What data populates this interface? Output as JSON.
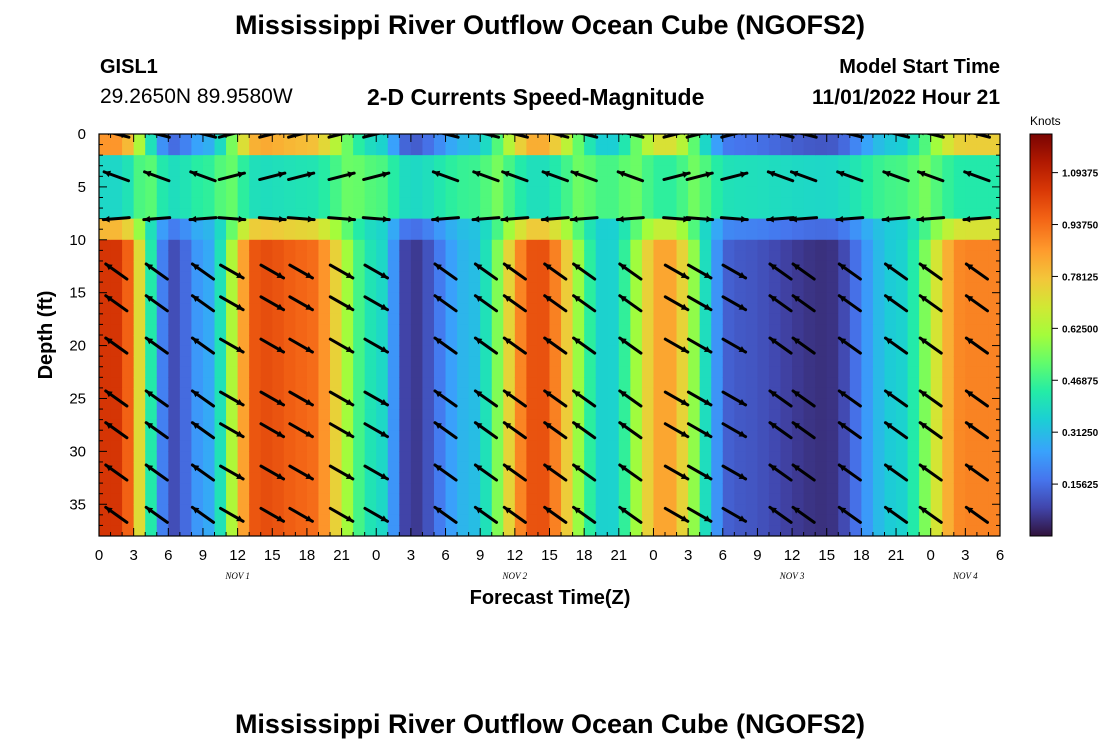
{
  "header": {
    "title": "Mississippi River Outflow Ocean Cube (NGOFS2)",
    "station_id": "GISL1",
    "station_coords": "29.2650N  89.9580W",
    "subtitle": "2-D Currents Speed-Magnitude",
    "model_label": "Model Start Time",
    "model_time": "11/01/2022 Hour 21"
  },
  "footer": {
    "title": "Mississippi River Outflow Ocean Cube (NGOFS2)"
  },
  "chart_data": {
    "type": "heatmap",
    "xlabel": "Forecast Time(Z)",
    "ylabel": "Depth (ft)",
    "xlim": [
      0,
      78
    ],
    "ylim": [
      38,
      0
    ],
    "x_tick_labels": [
      "0",
      "3",
      "6",
      "9",
      "12",
      "15",
      "18",
      "21",
      "0",
      "3",
      "6",
      "9",
      "12",
      "15",
      "18",
      "21",
      "0",
      "3",
      "6",
      "9",
      "12",
      "15",
      "18",
      "21",
      "0",
      "3",
      "6"
    ],
    "y_ticks": [
      0,
      5,
      10,
      15,
      20,
      25,
      30,
      35
    ],
    "day_labels": [
      {
        "label": "NOV 1",
        "hour": 12
      },
      {
        "label": "NOV 2",
        "hour": 36
      },
      {
        "label": "NOV 3",
        "hour": 60
      },
      {
        "label": "NOV 4",
        "hour": 75
      }
    ],
    "colorbar": {
      "title": "Knots",
      "range": [
        0,
        1.21
      ],
      "ticks": [
        "1.09375",
        "0.93750",
        "0.78125",
        "0.62500",
        "0.46875",
        "0.31250",
        "0.15625"
      ],
      "tick_values": [
        1.09375,
        0.9375,
        0.78125,
        0.625,
        0.46875,
        0.3125,
        0.15625
      ]
    },
    "speed_peaks_knots": [
      {
        "hour": 1.5,
        "speed": 1.05
      },
      {
        "hour": 6.5,
        "speed": 0.1
      },
      {
        "hour": 9,
        "speed": 0.25
      },
      {
        "hour": 14,
        "speed": 1.0
      },
      {
        "hour": 18,
        "speed": 0.95
      },
      {
        "hour": 24,
        "speed": 0.4
      },
      {
        "hour": 27,
        "speed": 0.06
      },
      {
        "hour": 32,
        "speed": 0.3
      },
      {
        "hour": 38,
        "speed": 1.0
      },
      {
        "hour": 44,
        "speed": 0.35
      },
      {
        "hour": 49,
        "speed": 0.85
      },
      {
        "hour": 55,
        "speed": 0.12
      },
      {
        "hour": 63,
        "speed": 0.05
      },
      {
        "hour": 69,
        "speed": 0.35
      },
      {
        "hour": 75,
        "speed": 0.9
      }
    ],
    "vectors": {
      "hours": [
        1.5,
        5,
        9,
        11.5,
        15,
        17.5,
        21,
        24,
        30,
        33.5,
        36,
        39.5,
        42,
        46,
        50,
        52,
        55,
        59,
        61,
        65,
        69,
        72,
        76
      ],
      "depths_ft": [
        0,
        4,
        8,
        13,
        16,
        20,
        25,
        28,
        32,
        36
      ],
      "direction_by_hour": [
        -1,
        -1,
        -1,
        1,
        1,
        1,
        1,
        1,
        -1,
        -1,
        -1,
        -1,
        -1,
        -1,
        1,
        1,
        1,
        -1,
        -1,
        -1,
        -1,
        -1,
        -1
      ]
    }
  }
}
